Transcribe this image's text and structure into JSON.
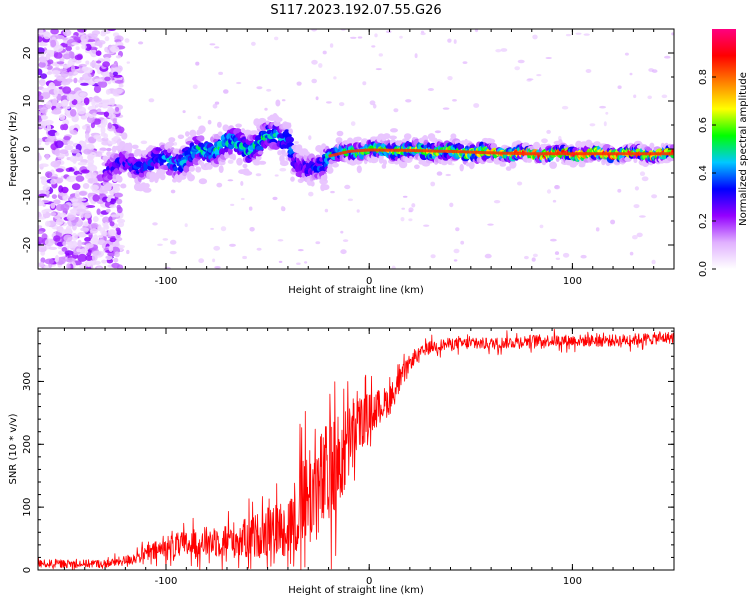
{
  "title": "S117.2023.192.07.55.G26",
  "chart_data": [
    {
      "type": "heatmap",
      "xlabel": "Height of straight line (km)",
      "ylabel": "Frequency (Hz)",
      "xlim": [
        -163,
        150
      ],
      "ylim": [
        -25,
        25
      ],
      "xticks": [
        -100,
        0,
        100
      ],
      "yticks": [
        -20,
        -10,
        0,
        10,
        20
      ],
      "colorbar": {
        "label": "Normalized spectral amplitude",
        "range": [
          0.0,
          1.0
        ],
        "ticks": [
          0.0,
          0.2,
          0.4,
          0.6,
          0.8
        ],
        "colors": [
          "#ffffff",
          "#e0b0ff",
          "#9400ff",
          "#0000ff",
          "#00c8ff",
          "#00ff00",
          "#ffff00",
          "#ff8000",
          "#ff0000",
          "#ff0080"
        ]
      },
      "ridge": {
        "x": [
          -130,
          -120,
          -110,
          -100,
          -90,
          -80,
          -70,
          -60,
          -50,
          -40,
          -35,
          -30,
          -25,
          -20,
          -10,
          0,
          20,
          40,
          60,
          80,
          100,
          120,
          150
        ],
        "frequency_hz": [
          -4,
          -3.5,
          -3,
          -2.5,
          -2,
          0,
          1,
          0.5,
          2,
          3,
          -4,
          -5,
          -3,
          -1.5,
          -0.5,
          -0.2,
          -0.3,
          -0.5,
          -0.8,
          -1,
          -1,
          -1,
          -1
        ],
        "amplitude": [
          0.25,
          0.3,
          0.35,
          0.4,
          0.45,
          0.45,
          0.45,
          0.45,
          0.45,
          0.4,
          0.3,
          0.3,
          0.35,
          0.45,
          0.5,
          0.55,
          0.6,
          0.65,
          0.7,
          0.8,
          0.85,
          0.85,
          0.8
        ]
      }
    },
    {
      "type": "line",
      "xlabel": "Height of straight line (km)",
      "ylabel": "SNR (10 * v/v)",
      "xlim": [
        -163,
        150
      ],
      "ylim": [
        0,
        385
      ],
      "xticks": [
        -100,
        0,
        100
      ],
      "yticks": [
        0,
        100,
        200,
        300
      ],
      "color": "#ff0000",
      "envelope": {
        "x": [
          -163,
          -130,
          -120,
          -110,
          -100,
          -80,
          -60,
          -50,
          -40,
          -35,
          -30,
          -25,
          -20,
          -15,
          -10,
          -5,
          0,
          10,
          15,
          20,
          25,
          30,
          40,
          60,
          80,
          100,
          120,
          150
        ],
        "mean": [
          10,
          10,
          15,
          25,
          35,
          45,
          50,
          60,
          70,
          90,
          120,
          130,
          150,
          170,
          200,
          230,
          250,
          270,
          300,
          330,
          345,
          355,
          360,
          360,
          365,
          365,
          365,
          370
        ],
        "spread": [
          8,
          8,
          10,
          15,
          25,
          30,
          40,
          50,
          60,
          90,
          110,
          110,
          110,
          100,
          80,
          60,
          40,
          30,
          25,
          15,
          12,
          12,
          12,
          12,
          12,
          12,
          12,
          12
        ]
      }
    }
  ]
}
